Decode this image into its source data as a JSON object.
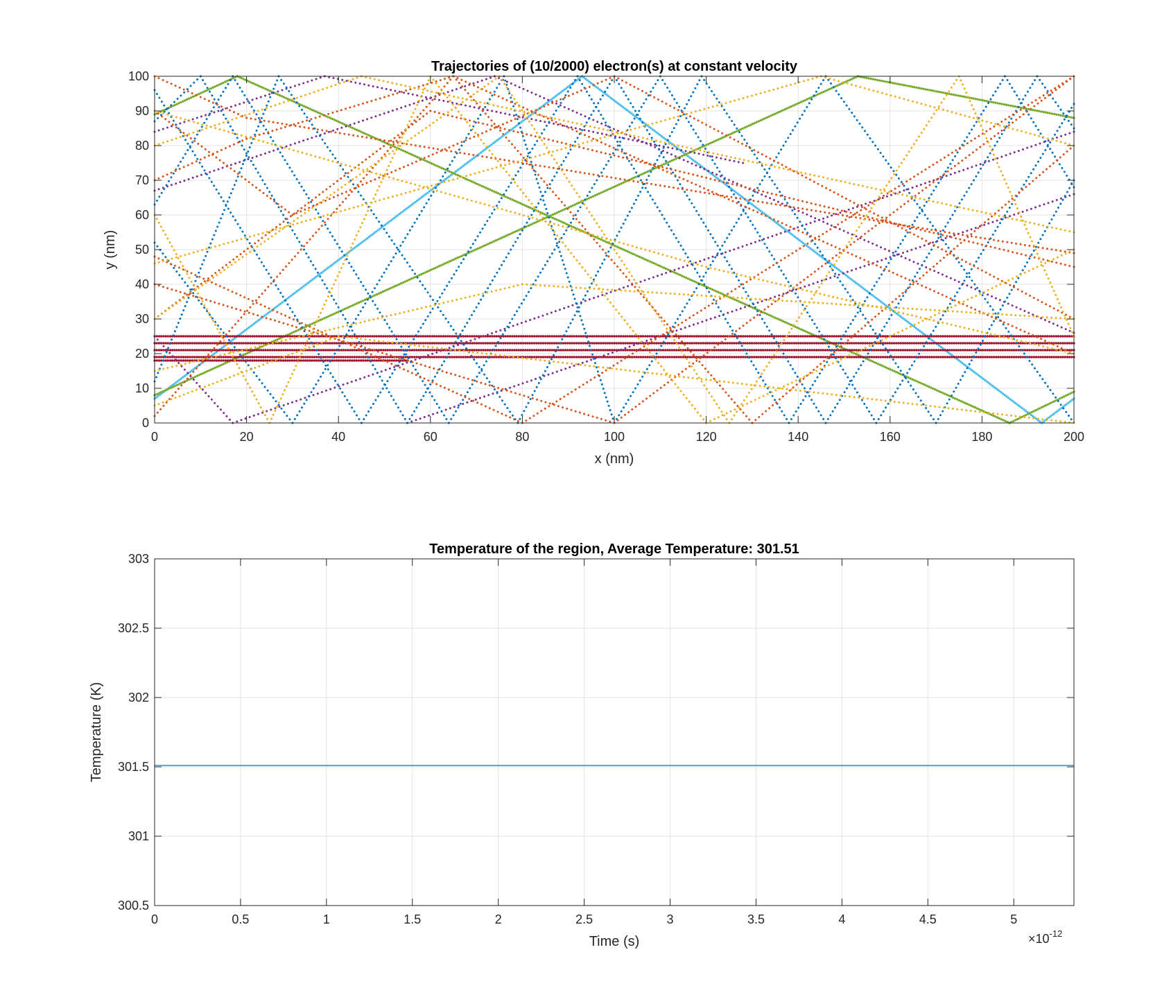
{
  "chart_data": [
    {
      "type": "scatter",
      "title": "Trajectories of (10/2000) electron(s) at constant velocity",
      "xlabel": "x (nm)",
      "ylabel": "y (nm)",
      "xlim": [
        0,
        200
      ],
      "ylim": [
        0,
        100
      ],
      "xticks": [
        0,
        20,
        40,
        60,
        80,
        100,
        120,
        140,
        160,
        180,
        200
      ],
      "yticks": [
        0,
        10,
        20,
        30,
        40,
        50,
        60,
        70,
        80,
        90,
        100
      ],
      "grid": true,
      "colors": [
        "#0072BD",
        "#D95319",
        "#EDB120",
        "#7E2F8E",
        "#77AC30",
        "#4DBEEE",
        "#A2142F"
      ],
      "series": [
        {
          "color": "#4DBEEE",
          "style": "dots-dense",
          "points": [
            [
              0,
              7
            ],
            [
              93,
              100
            ],
            [
              193,
              0
            ],
            [
              200,
              7
            ]
          ]
        },
        {
          "color": "#77AC30",
          "style": "dots-dense",
          "points": [
            [
              0,
              89
            ],
            [
              18,
              100
            ],
            [
              186,
              0
            ],
            [
              200,
              9
            ]
          ]
        },
        {
          "color": "#77AC30",
          "style": "dots-dense",
          "points": [
            [
              0,
              8
            ],
            [
              153,
              100
            ],
            [
              200,
              88
            ]
          ]
        },
        {
          "color": "#A2142F",
          "style": "dots-dense",
          "points": [
            [
              0,
              25
            ],
            [
              200,
              25
            ]
          ]
        },
        {
          "color": "#A2142F",
          "style": "dots-dense",
          "points": [
            [
              0,
              23
            ],
            [
              200,
              23
            ]
          ]
        },
        {
          "color": "#A2142F",
          "style": "dots-dense",
          "points": [
            [
              0,
              21
            ],
            [
              200,
              21
            ]
          ]
        },
        {
          "color": "#A2142F",
          "style": "dots-dense",
          "points": [
            [
              0,
              19
            ],
            [
              200,
              19
            ]
          ]
        },
        {
          "color": "#A2142F",
          "style": "dots-dense",
          "points": [
            [
              0,
              18
            ],
            [
              55,
              18
            ]
          ]
        },
        {
          "color": "#7E2F8E",
          "style": "dots",
          "points": [
            [
              0,
              84
            ],
            [
              37,
              100
            ],
            [
              128,
              75
            ]
          ]
        },
        {
          "color": "#7E2F8E",
          "style": "dots",
          "points": [
            [
              0,
              67
            ],
            [
              74,
              100
            ],
            [
              200,
              26
            ]
          ]
        },
        {
          "color": "#7E2F8E",
          "style": "dots",
          "points": [
            [
              0,
              25
            ],
            [
              17,
              0
            ],
            [
              200,
              84
            ]
          ]
        },
        {
          "color": "#7E2F8E",
          "style": "dots",
          "points": [
            [
              55,
              0
            ],
            [
              200,
              66
            ]
          ]
        },
        {
          "color": "#0072BD",
          "style": "dots",
          "points": [
            [
              0,
              96
            ],
            [
              45,
              0
            ],
            [
              92,
              100
            ],
            [
              138,
              0
            ],
            [
              185,
              100
            ],
            [
              200,
              68
            ]
          ]
        },
        {
          "color": "#0072BD",
          "style": "dots",
          "points": [
            [
              0,
              63
            ],
            [
              17,
              100
            ],
            [
              64,
              0
            ],
            [
              110,
              100
            ],
            [
              157,
              0
            ],
            [
              200,
              92
            ]
          ]
        },
        {
          "color": "#0072BD",
          "style": "dots",
          "points": [
            [
              0,
              12
            ],
            [
              27,
              100
            ],
            [
              79,
              0
            ],
            [
              119,
              100
            ],
            [
              170,
              0
            ],
            [
              200,
              70
            ]
          ]
        },
        {
          "color": "#0072BD",
          "style": "dots",
          "points": [
            [
              0,
              87
            ],
            [
              10,
              100
            ],
            [
              55,
              0
            ],
            [
              100,
              100
            ],
            [
              146,
              0
            ],
            [
              192,
              100
            ],
            [
              200,
              85
            ]
          ]
        },
        {
          "color": "#0072BD",
          "style": "dots",
          "points": [
            [
              0,
              52
            ],
            [
              30,
              0
            ],
            [
              76,
              100
            ],
            [
              100,
              0
            ],
            [
              146,
              100
            ],
            [
              200,
              0
            ]
          ]
        },
        {
          "color": "#D95319",
          "style": "dots",
          "points": [
            [
              0,
              100
            ],
            [
              20,
              88
            ],
            [
              200,
              49
            ]
          ]
        },
        {
          "color": "#D95319",
          "style": "dots",
          "points": [
            [
              0,
              70
            ],
            [
              20,
              82
            ],
            [
              65,
              100
            ],
            [
              200,
              20
            ]
          ]
        },
        {
          "color": "#D95319",
          "style": "dots",
          "points": [
            [
              0,
              48
            ],
            [
              80,
              0
            ],
            [
              200,
              100
            ]
          ]
        },
        {
          "color": "#D95319",
          "style": "dots",
          "points": [
            [
              0,
              2
            ],
            [
              65,
              100
            ],
            [
              130,
              0
            ],
            [
              200,
              80
            ]
          ]
        },
        {
          "color": "#D95319",
          "style": "dots",
          "points": [
            [
              0,
              30
            ],
            [
              60,
              90
            ],
            [
              200,
              45
            ]
          ]
        },
        {
          "color": "#D95319",
          "style": "dots",
          "points": [
            [
              0,
              90
            ],
            [
              30,
              60
            ],
            [
              100,
              100
            ],
            [
              200,
              30
            ]
          ]
        },
        {
          "color": "#D95319",
          "style": "dots",
          "points": [
            [
              0,
              40
            ],
            [
              100,
              0
            ],
            [
              160,
              60
            ],
            [
              200,
              100
            ]
          ]
        },
        {
          "color": "#EDB120",
          "style": "dots",
          "points": [
            [
              0,
              90
            ],
            [
              120,
              45
            ],
            [
              200,
              20
            ]
          ]
        },
        {
          "color": "#EDB120",
          "style": "dots",
          "points": [
            [
              0,
              46
            ],
            [
              145,
              100
            ],
            [
              200,
              80
            ]
          ]
        },
        {
          "color": "#EDB120",
          "style": "dots",
          "points": [
            [
              0,
              80
            ],
            [
              45,
              100
            ],
            [
              200,
              55
            ]
          ]
        },
        {
          "color": "#EDB120",
          "style": "dots",
          "points": [
            [
              0,
              5
            ],
            [
              40,
              25
            ],
            [
              200,
              0
            ]
          ]
        },
        {
          "color": "#EDB120",
          "style": "dots",
          "points": [
            [
              0,
              60
            ],
            [
              25,
              0
            ],
            [
              60,
              100
            ],
            [
              120,
              0
            ],
            [
              200,
              50
            ]
          ]
        },
        {
          "color": "#EDB120",
          "style": "dots",
          "points": [
            [
              0,
              30
            ],
            [
              75,
              100
            ],
            [
              125,
              0
            ],
            [
              175,
              100
            ],
            [
              200,
              25
            ]
          ]
        },
        {
          "color": "#EDB120",
          "style": "dots",
          "points": [
            [
              0,
              15
            ],
            [
              80,
              40
            ],
            [
              200,
              30
            ]
          ]
        }
      ]
    },
    {
      "type": "line",
      "title": "Temperature of the region, Average Temperature: 301.51",
      "xlabel": "Time (s)",
      "ylabel": "Temperature (K)",
      "xlim": [
        0,
        5.35
      ],
      "ylim": [
        300.5,
        303
      ],
      "xticks": [
        "0",
        "0.5",
        "1",
        "1.5",
        "2",
        "2.5",
        "3",
        "3.5",
        "4",
        "4.5",
        "5"
      ],
      "yticks": [
        "300.5",
        "301",
        "301.5",
        "302",
        "302.5",
        "303"
      ],
      "x_exponent_base": "10",
      "x_exponent": "-12",
      "grid": true,
      "color": "#0072BD",
      "series": [
        {
          "x": [
            0,
            5.35
          ],
          "y": [
            301.51,
            301.51
          ]
        }
      ]
    }
  ]
}
